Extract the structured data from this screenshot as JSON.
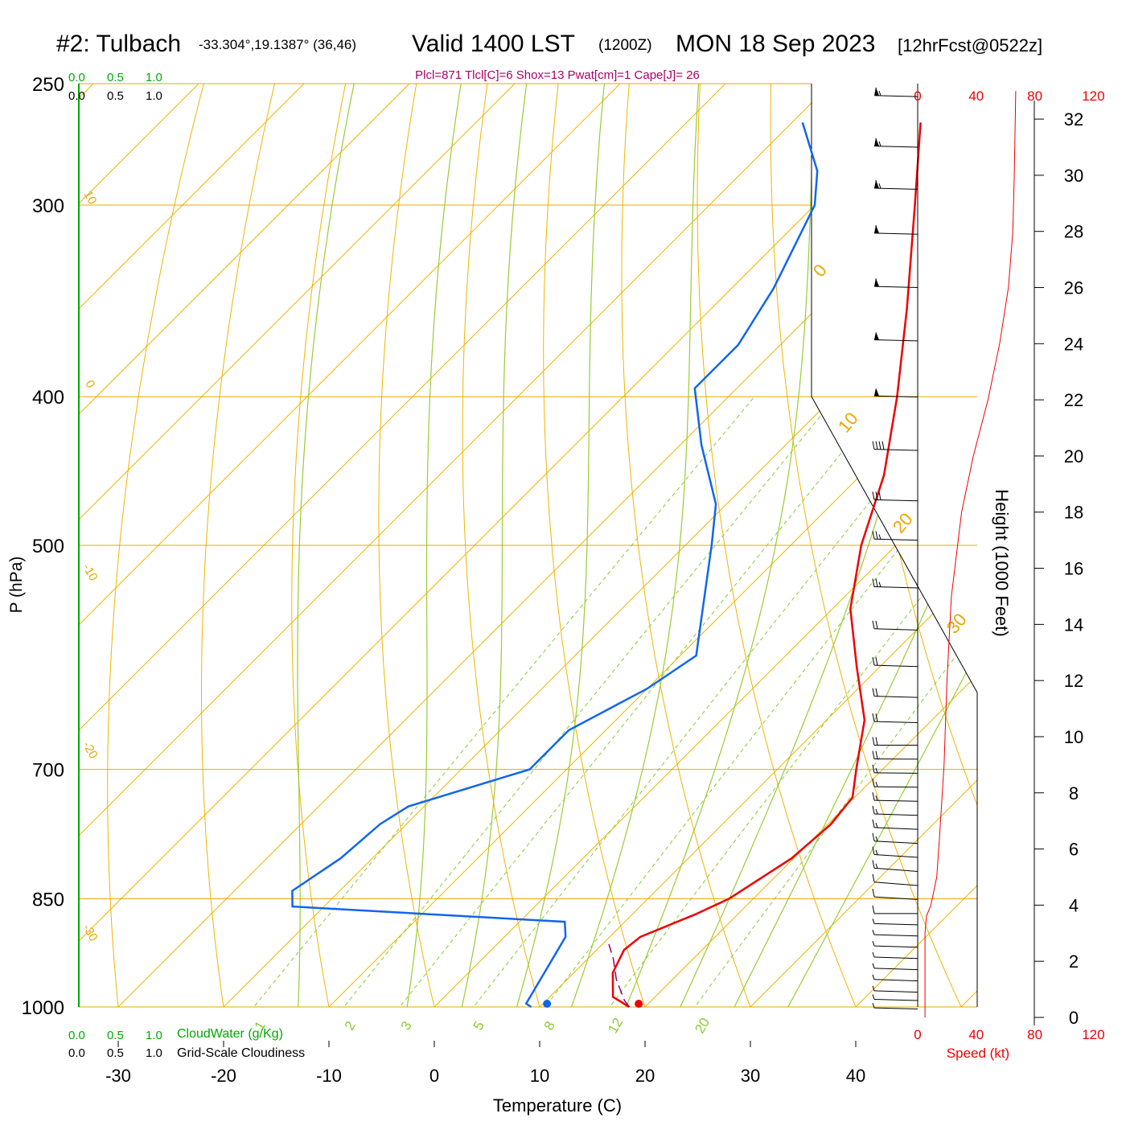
{
  "header": {
    "station": "#2: Tulbach",
    "coords": "-33.304°,19.1387° (36,46)",
    "valid": "Valid 1400 LST",
    "zulu": "(1200Z)",
    "date": "MON 18 Sep 2023",
    "forecast": "[12hrFcst@0522z]"
  },
  "indices_line": "Plcl=871 Tlcl[C]=6 Shox=13 Pwat[cm]=1 Cape[J]= 26",
  "colors": {
    "isobar": "#e8a800",
    "isotherm": "#f0b400",
    "dry_adiabat": "#f0b400",
    "moist_adiabat": "#99cc33",
    "mixing_ratio": "#88cc33",
    "temperature": "#ee0000",
    "dewpoint": "#1166ee",
    "parcel": "#990066",
    "indices": "#aa0066",
    "cloudwater": "#00aa00",
    "speed": "#ee0000"
  },
  "cloud_scale": {
    "top_values": [
      "0.0",
      "0.5",
      "1.0"
    ],
    "bottom_values": [
      "0.0",
      "0.5",
      "1.0"
    ],
    "cloudwater_label": "CloudWater (g/Kg)",
    "cloudiness_label": "Grid-Scale Cloudiness"
  },
  "speed_scale": {
    "ticks": [
      "0",
      "40",
      "80",
      "120"
    ],
    "label": "Speed (kt)"
  },
  "chart_data": {
    "type": "skew-t",
    "xlabel": "Temperature (C)",
    "ylabel": "P (hPa)",
    "height_label": "Height (1000 Feet)",
    "x_ticks": [
      -30,
      -20,
      -10,
      0,
      10,
      20,
      30,
      40
    ],
    "pressure_ticks": [
      250,
      300,
      400,
      500,
      700,
      850,
      1000
    ],
    "height_ticks": [
      0,
      2,
      4,
      6,
      8,
      10,
      12,
      14,
      16,
      18,
      20,
      22,
      24,
      26,
      28,
      30,
      32
    ],
    "dry_adiabat_labels": [
      "-30",
      "-20",
      "-10",
      "0",
      "10",
      "0",
      "10",
      "20",
      "30"
    ],
    "mixing_ratio_labels": [
      "1",
      "2",
      "3",
      "5",
      "8",
      "12",
      "20"
    ],
    "temperature": [
      {
        "p": 1000,
        "t": 18.5
      },
      {
        "p": 985,
        "t": 16.0
      },
      {
        "p": 950,
        "t": 13.7
      },
      {
        "p": 918,
        "t": 12.6
      },
      {
        "p": 900,
        "t": 12.9
      },
      {
        "p": 870,
        "t": 16.0
      },
      {
        "p": 850,
        "t": 17.7
      },
      {
        "p": 800,
        "t": 19.8
      },
      {
        "p": 760,
        "t": 20.3
      },
      {
        "p": 730,
        "t": 19.8
      },
      {
        "p": 700,
        "t": 17.5
      },
      {
        "p": 650,
        "t": 13.6
      },
      {
        "p": 600,
        "t": 7.8
      },
      {
        "p": 550,
        "t": 1.7
      },
      {
        "p": 500,
        "t": -3.3
      },
      {
        "p": 450,
        "t": -7.8
      },
      {
        "p": 400,
        "t": -14.0
      },
      {
        "p": 350,
        "t": -21.5
      },
      {
        "p": 300,
        "t": -30.5
      },
      {
        "p": 265,
        "t": -37.8
      }
    ],
    "dewpoint": [
      {
        "p": 1000,
        "t": 9.2
      },
      {
        "p": 995,
        "t": 8.4
      },
      {
        "p": 950,
        "t": 7.2
      },
      {
        "p": 900,
        "t": 5.8
      },
      {
        "p": 880,
        "t": 4.3
      },
      {
        "p": 860,
        "t": -23.0
      },
      {
        "p": 840,
        "t": -24.5
      },
      {
        "p": 800,
        "t": -23.0
      },
      {
        "p": 760,
        "t": -22.5
      },
      {
        "p": 740,
        "t": -21.5
      },
      {
        "p": 700,
        "t": -13.5
      },
      {
        "p": 660,
        "t": -13.5
      },
      {
        "p": 620,
        "t": -10.0
      },
      {
        "p": 590,
        "t": -8.5
      },
      {
        "p": 500,
        "t": -17.5
      },
      {
        "p": 470,
        "t": -21.0
      },
      {
        "p": 430,
        "t": -28.0
      },
      {
        "p": 395,
        "t": -34.0
      },
      {
        "p": 370,
        "t": -34.0
      },
      {
        "p": 340,
        "t": -36.0
      },
      {
        "p": 300,
        "t": -40.0
      },
      {
        "p": 285,
        "t": -43.0
      },
      {
        "p": 265,
        "t": -49.0
      }
    ],
    "parcel": [
      {
        "p": 1000,
        "t": 18.5
      },
      {
        "p": 990,
        "t": 17.4
      },
      {
        "p": 960,
        "t": 14.7
      },
      {
        "p": 930,
        "t": 12.4
      },
      {
        "p": 910,
        "t": 10.6
      }
    ],
    "surface_temperature": 19.4,
    "surface_dewpoint": 10.7,
    "wind_speed_profile": [
      {
        "ft": 0,
        "kt": 5
      },
      {
        "ft": 3000,
        "kt": 5
      },
      {
        "ft": 3600,
        "kt": 6
      },
      {
        "ft": 4000,
        "kt": 9
      },
      {
        "ft": 5000,
        "kt": 13
      },
      {
        "ft": 6500,
        "kt": 15
      },
      {
        "ft": 9000,
        "kt": 18
      },
      {
        "ft": 12000,
        "kt": 20
      },
      {
        "ft": 15000,
        "kt": 23
      },
      {
        "ft": 18000,
        "kt": 30
      },
      {
        "ft": 20000,
        "kt": 38
      },
      {
        "ft": 22000,
        "kt": 48
      },
      {
        "ft": 24000,
        "kt": 56
      },
      {
        "ft": 26000,
        "kt": 62
      },
      {
        "ft": 28000,
        "kt": 65
      },
      {
        "ft": 30000,
        "kt": 66
      },
      {
        "ft": 33000,
        "kt": 67
      }
    ],
    "wind_barbs": [
      {
        "ft": 300,
        "dir": 282,
        "kt": 5
      },
      {
        "ft": 600,
        "dir": 284,
        "kt": 5
      },
      {
        "ft": 900,
        "dir": 285,
        "kt": 5
      },
      {
        "ft": 1300,
        "dir": 286,
        "kt": 5
      },
      {
        "ft": 1700,
        "dir": 286,
        "kt": 5
      },
      {
        "ft": 2100,
        "dir": 285,
        "kt": 5
      },
      {
        "ft": 2500,
        "dir": 284,
        "kt": 5
      },
      {
        "ft": 2900,
        "dir": 284,
        "kt": 5
      },
      {
        "ft": 3300,
        "dir": 283,
        "kt": 6
      },
      {
        "ft": 3700,
        "dir": 270,
        "kt": 8
      },
      {
        "ft": 4200,
        "dir": 240,
        "kt": 10
      },
      {
        "ft": 4700,
        "dir": 230,
        "kt": 12
      },
      {
        "ft": 5200,
        "dir": 232,
        "kt": 13
      },
      {
        "ft": 5700,
        "dir": 238,
        "kt": 14
      },
      {
        "ft": 6200,
        "dir": 244,
        "kt": 15
      },
      {
        "ft": 6700,
        "dir": 250,
        "kt": 15
      },
      {
        "ft": 7200,
        "dir": 255,
        "kt": 16
      },
      {
        "ft": 7700,
        "dir": 260,
        "kt": 16
      },
      {
        "ft": 8200,
        "dir": 264,
        "kt": 17
      },
      {
        "ft": 8700,
        "dir": 266,
        "kt": 17
      },
      {
        "ft": 9200,
        "dir": 268,
        "kt": 18
      },
      {
        "ft": 9700,
        "dir": 270,
        "kt": 18
      },
      {
        "ft": 10500,
        "dir": 282,
        "kt": 19
      },
      {
        "ft": 11400,
        "dir": 283,
        "kt": 20
      },
      {
        "ft": 12500,
        "dir": 284,
        "kt": 21
      },
      {
        "ft": 13800,
        "dir": 284,
        "kt": 22
      },
      {
        "ft": 15300,
        "dir": 283,
        "kt": 24
      },
      {
        "ft": 17000,
        "dir": 282,
        "kt": 26
      },
      {
        "ft": 18400,
        "dir": 282,
        "kt": 30
      },
      {
        "ft": 20200,
        "dir": 282,
        "kt": 38
      },
      {
        "ft": 22100,
        "dir": 282,
        "kt": 48
      },
      {
        "ft": 24100,
        "dir": 282,
        "kt": 56
      },
      {
        "ft": 26000,
        "dir": 282,
        "kt": 60
      },
      {
        "ft": 27900,
        "dir": 282,
        "kt": 62
      },
      {
        "ft": 29500,
        "dir": 282,
        "kt": 64
      },
      {
        "ft": 31000,
        "dir": 282,
        "kt": 65
      },
      {
        "ft": 32800,
        "dir": 282,
        "kt": 66
      }
    ]
  }
}
